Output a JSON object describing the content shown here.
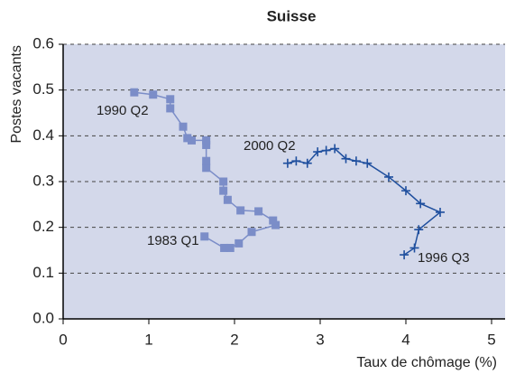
{
  "chart_data": {
    "type": "line",
    "title": "Suisse",
    "x_label": "Taux de chômage (%)",
    "y_label": "Postes vacants",
    "xlim": [
      0,
      5
    ],
    "ylim": [
      0,
      0.6
    ],
    "xticks": [
      0,
      1,
      2,
      3,
      4,
      5
    ],
    "yticks": [
      {
        "value": 0,
        "label": "0.0"
      },
      0.1,
      0.2,
      0.3,
      0.4,
      0.5,
      0.6
    ],
    "grid": true,
    "annotations": [
      "1990 Q2",
      "1983 Q1",
      "2000 Q2",
      "1996 Q3"
    ],
    "series": [
      {
        "color": "#7b8dc8",
        "marker": "square",
        "x": [
          1.65,
          1.88,
          1.95,
          2.05,
          2.2,
          2.48,
          2.45,
          2.28,
          2.07,
          1.92,
          1.87,
          1.87,
          1.67,
          1.67,
          1.67,
          1.67,
          1.5,
          1.45,
          1.4,
          1.25,
          1.25,
          1.05,
          0.83
        ],
        "values": [
          0.18,
          0.155,
          0.155,
          0.165,
          0.19,
          0.205,
          0.215,
          0.235,
          0.237,
          0.26,
          0.28,
          0.3,
          0.33,
          0.345,
          0.38,
          0.39,
          0.39,
          0.395,
          0.42,
          0.46,
          0.48,
          0.49,
          0.495
        ]
      },
      {
        "color": "#1f4f9e",
        "marker": "plus",
        "x": [
          3.98,
          4.1,
          4.15,
          4.4,
          4.17,
          4.0,
          3.8,
          3.55,
          3.42,
          3.3,
          3.17,
          3.07,
          2.97,
          2.85,
          2.72,
          2.62
        ],
        "values": [
          0.14,
          0.155,
          0.195,
          0.233,
          0.252,
          0.28,
          0.31,
          0.34,
          0.345,
          0.35,
          0.372,
          0.368,
          0.365,
          0.34,
          0.345,
          0.34
        ]
      }
    ]
  }
}
